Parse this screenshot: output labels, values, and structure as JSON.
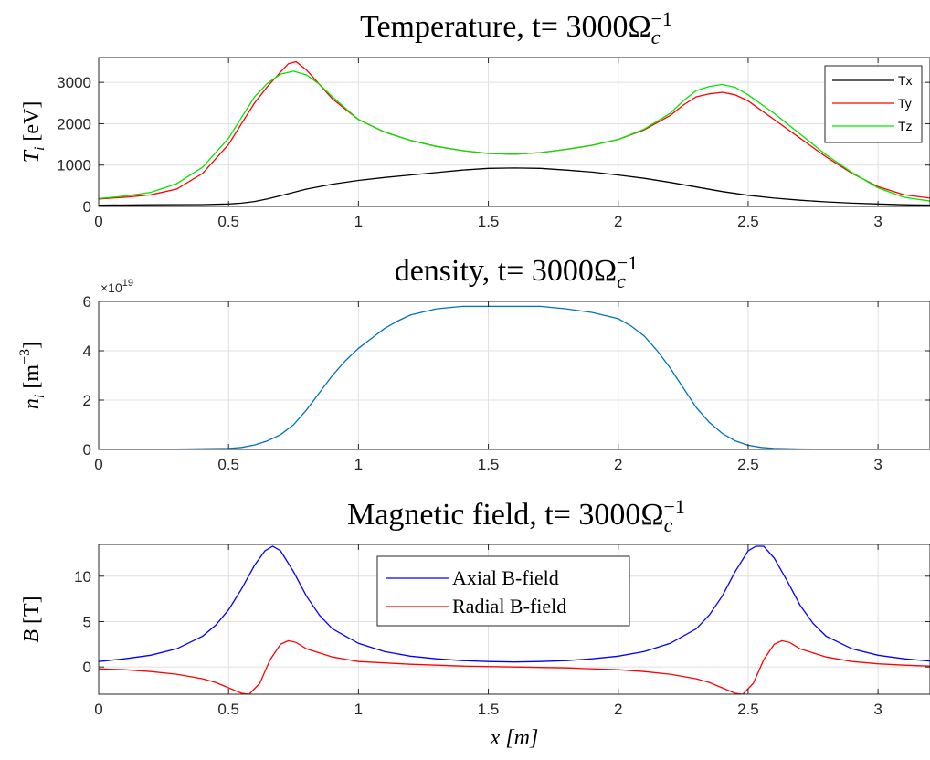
{
  "chart_data": [
    {
      "type": "line",
      "title": "Temperature, t= 3000Ω",
      "title_sub": "c",
      "title_sup": "−1",
      "ylabel_var": "T",
      "ylabel_sub": "i",
      "ylabel_unit": " [eV]",
      "xlabel": "",
      "xlim": [
        0,
        3.2
      ],
      "ylim": [
        0,
        3600
      ],
      "xticks": [
        0,
        0.5,
        1,
        1.5,
        2,
        2.5,
        3
      ],
      "xtick_labels": [
        "0",
        "0.5",
        "1",
        "1.5",
        "2",
        "2.5",
        "3"
      ],
      "yticks": [
        0,
        1000,
        2000,
        3000
      ],
      "ytick_labels": [
        "0",
        "1000",
        "2000",
        "3000"
      ],
      "grid": true,
      "legend_position": "top-right",
      "series": [
        {
          "name": "Tx",
          "color": "#000000",
          "x": [
            0,
            0.2,
            0.4,
            0.5,
            0.55,
            0.6,
            0.65,
            0.7,
            0.75,
            0.8,
            0.9,
            1.0,
            1.1,
            1.2,
            1.3,
            1.4,
            1.5,
            1.6,
            1.7,
            1.8,
            1.9,
            2.0,
            2.1,
            2.2,
            2.3,
            2.4,
            2.5,
            2.6,
            2.7,
            2.8,
            2.9,
            3.0,
            3.1,
            3.2
          ],
          "values": [
            30,
            40,
            45,
            60,
            80,
            120,
            180,
            260,
            340,
            420,
            540,
            630,
            700,
            760,
            820,
            880,
            920,
            930,
            920,
            880,
            830,
            760,
            680,
            580,
            470,
            360,
            270,
            200,
            150,
            110,
            80,
            60,
            40,
            30
          ]
        },
        {
          "name": "Ty",
          "color": "#ff0000",
          "x": [
            0,
            0.1,
            0.2,
            0.3,
            0.4,
            0.5,
            0.55,
            0.6,
            0.65,
            0.7,
            0.73,
            0.76,
            0.8,
            0.85,
            0.9,
            1.0,
            1.1,
            1.2,
            1.3,
            1.4,
            1.5,
            1.6,
            1.7,
            1.8,
            1.9,
            2.0,
            2.1,
            2.2,
            2.25,
            2.3,
            2.35,
            2.4,
            2.45,
            2.5,
            2.6,
            2.7,
            2.8,
            2.9,
            3.0,
            3.1,
            3.2
          ],
          "values": [
            180,
            220,
            280,
            420,
            800,
            1500,
            2000,
            2500,
            2900,
            3250,
            3450,
            3500,
            3300,
            2950,
            2600,
            2100,
            1800,
            1600,
            1450,
            1350,
            1280,
            1260,
            1300,
            1380,
            1480,
            1620,
            1850,
            2200,
            2450,
            2650,
            2720,
            2760,
            2700,
            2550,
            2100,
            1650,
            1200,
            800,
            480,
            280,
            200
          ]
        },
        {
          "name": "Tz",
          "color": "#00e600",
          "x": [
            0,
            0.1,
            0.2,
            0.3,
            0.4,
            0.5,
            0.55,
            0.6,
            0.65,
            0.7,
            0.75,
            0.8,
            0.85,
            0.9,
            1.0,
            1.1,
            1.2,
            1.3,
            1.4,
            1.5,
            1.6,
            1.7,
            1.8,
            1.9,
            2.0,
            2.1,
            2.2,
            2.25,
            2.3,
            2.35,
            2.4,
            2.45,
            2.5,
            2.6,
            2.7,
            2.8,
            2.9,
            3.0,
            3.1,
            3.2
          ],
          "values": [
            190,
            250,
            340,
            550,
            950,
            1650,
            2150,
            2650,
            2980,
            3200,
            3270,
            3180,
            2950,
            2650,
            2100,
            1800,
            1600,
            1450,
            1350,
            1280,
            1260,
            1300,
            1380,
            1480,
            1620,
            1870,
            2250,
            2550,
            2800,
            2900,
            2950,
            2880,
            2700,
            2250,
            1750,
            1250,
            820,
            450,
            220,
            130
          ]
        }
      ]
    },
    {
      "type": "line",
      "title": "density, t= 3000Ω",
      "title_sub": "c",
      "title_sup": "−1",
      "ylabel_var": "n",
      "ylabel_sub": "i",
      "ylabel_unit": " [m",
      "ylabel_unit_sup": "−3",
      "ylabel_unit_end": "]",
      "exponent_label": "×10",
      "exponent_sup": "19",
      "xlabel": "",
      "xlim": [
        0,
        3.2
      ],
      "ylim": [
        0,
        6
      ],
      "xticks": [
        0,
        0.5,
        1,
        1.5,
        2,
        2.5,
        3
      ],
      "xtick_labels": [
        "0",
        "0.5",
        "1",
        "1.5",
        "2",
        "2.5",
        "3"
      ],
      "yticks": [
        0,
        2,
        4,
        6
      ],
      "ytick_labels": [
        "0",
        "2",
        "4",
        "6"
      ],
      "grid": true,
      "series": [
        {
          "name": "",
          "color": "#0072bd",
          "x": [
            0,
            0.3,
            0.5,
            0.55,
            0.6,
            0.65,
            0.7,
            0.75,
            0.8,
            0.85,
            0.9,
            0.95,
            1.0,
            1.05,
            1.1,
            1.15,
            1.2,
            1.3,
            1.4,
            1.5,
            1.6,
            1.7,
            1.8,
            1.9,
            2.0,
            2.05,
            2.1,
            2.15,
            2.2,
            2.25,
            2.3,
            2.35,
            2.4,
            2.45,
            2.5,
            2.55,
            2.6,
            2.7,
            2.9,
            3.2
          ],
          "values": [
            0.0,
            0.01,
            0.04,
            0.08,
            0.18,
            0.35,
            0.6,
            1.0,
            1.6,
            2.3,
            3.0,
            3.6,
            4.1,
            4.5,
            4.9,
            5.2,
            5.45,
            5.7,
            5.8,
            5.8,
            5.8,
            5.8,
            5.7,
            5.55,
            5.3,
            5.0,
            4.6,
            4.0,
            3.3,
            2.5,
            1.7,
            1.1,
            0.65,
            0.35,
            0.17,
            0.08,
            0.04,
            0.02,
            0.0,
            0.0
          ]
        }
      ]
    },
    {
      "type": "line",
      "title": "Magnetic field, t= 3000Ω",
      "title_sub": "c",
      "title_sup": "−1",
      "ylabel_var": "B",
      "ylabel_unit": " [T]",
      "xlabel_var": "x",
      "xlabel_unit": " [m]",
      "xlim": [
        0,
        3.2
      ],
      "ylim": [
        -3,
        13.5
      ],
      "xticks": [
        0,
        0.5,
        1,
        1.5,
        2,
        2.5,
        3
      ],
      "xtick_labels": [
        "0",
        "0.5",
        "1",
        "1.5",
        "2",
        "2.5",
        "3"
      ],
      "yticks": [
        0,
        5,
        10
      ],
      "ytick_labels": [
        "0",
        "5",
        "10"
      ],
      "grid": true,
      "legend_position": "top-center",
      "series": [
        {
          "name": "Axial B-field",
          "color": "#0000ff",
          "x": [
            0,
            0.1,
            0.2,
            0.3,
            0.4,
            0.45,
            0.5,
            0.55,
            0.6,
            0.64,
            0.67,
            0.7,
            0.75,
            0.8,
            0.85,
            0.9,
            1.0,
            1.1,
            1.2,
            1.3,
            1.4,
            1.5,
            1.6,
            1.7,
            1.8,
            1.9,
            2.0,
            2.1,
            2.2,
            2.3,
            2.35,
            2.4,
            2.45,
            2.5,
            2.53,
            2.56,
            2.6,
            2.65,
            2.7,
            2.75,
            2.8,
            2.9,
            3.0,
            3.1,
            3.2
          ],
          "values": [
            0.6,
            0.9,
            1.3,
            2.0,
            3.4,
            4.6,
            6.3,
            8.6,
            11.2,
            12.8,
            13.3,
            12.8,
            10.5,
            7.8,
            5.7,
            4.2,
            2.6,
            1.7,
            1.2,
            0.9,
            0.7,
            0.6,
            0.55,
            0.6,
            0.7,
            0.9,
            1.2,
            1.7,
            2.6,
            4.2,
            5.7,
            7.8,
            10.5,
            12.8,
            13.3,
            13.3,
            12.0,
            9.5,
            6.8,
            4.8,
            3.4,
            2.0,
            1.3,
            0.9,
            0.65
          ]
        },
        {
          "name": "Radial B-field",
          "color": "#ff0000",
          "x": [
            0,
            0.1,
            0.2,
            0.3,
            0.4,
            0.45,
            0.5,
            0.55,
            0.58,
            0.62,
            0.66,
            0.7,
            0.73,
            0.76,
            0.8,
            0.9,
            1.0,
            1.2,
            1.4,
            1.6,
            1.8,
            2.0,
            2.1,
            2.2,
            2.3,
            2.35,
            2.4,
            2.45,
            2.48,
            2.52,
            2.56,
            2.6,
            2.63,
            2.66,
            2.7,
            2.8,
            2.9,
            3.0,
            3.1,
            3.2
          ],
          "values": [
            -0.2,
            -0.3,
            -0.5,
            -0.8,
            -1.3,
            -1.7,
            -2.3,
            -2.9,
            -3.0,
            -1.8,
            0.8,
            2.5,
            2.9,
            2.7,
            2.0,
            1.1,
            0.6,
            0.3,
            0.1,
            0.0,
            -0.1,
            -0.3,
            -0.5,
            -0.8,
            -1.3,
            -1.7,
            -2.3,
            -2.9,
            -3.0,
            -1.8,
            0.8,
            2.5,
            2.9,
            2.7,
            2.0,
            1.1,
            0.6,
            0.35,
            0.2,
            0.1
          ]
        }
      ]
    }
  ]
}
